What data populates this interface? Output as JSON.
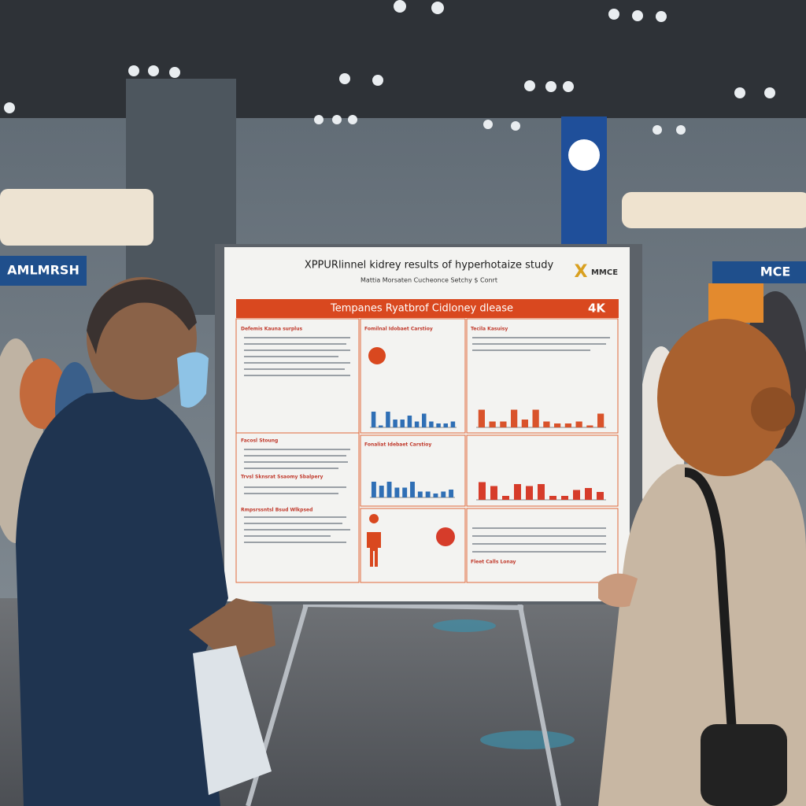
{
  "signs": {
    "left": "AMLMRSH",
    "right": "MCE"
  },
  "poster": {
    "title": "XPPURlinnel kidrey results of hyperhotaize study",
    "subtitle": "Mattia Morsaten Cucheonce Setchy $ Conrt",
    "logo_mark": "X",
    "logo": "MMCE",
    "banner": "Tempanes Ryatbrof Cidloney dlease",
    "banner_tag": "4K",
    "sections": [
      "Defemis Kauna surplus",
      "Fomilnal Idobaet Carstioy",
      "Tecila Kasuisy",
      "Fonaliat Idebaet Carstioy",
      "Facosl Stoung",
      "Trvsl Sknsrat Ssaomy Sbalpery",
      "Rmpsrssntsl Bsud Wlkpsed",
      "Fleet Calls Lonay"
    ],
    "charts": [
      {
        "color": "#2f6fb5",
        "ylim": [
          0,
          100
        ],
        "values": [
          40,
          5,
          40,
          20,
          20,
          30,
          15,
          35,
          15,
          10,
          10,
          15
        ]
      },
      {
        "color": "#d9532b",
        "ylim": [
          0,
          100
        ],
        "values": [
          45,
          15,
          15,
          45,
          20,
          45,
          15,
          10,
          10,
          15,
          5,
          35
        ]
      },
      {
        "color": "#2f6fb5",
        "ylim": [
          0,
          100
        ],
        "values": [
          40,
          30,
          40,
          25,
          25,
          40,
          15,
          15,
          10,
          15,
          20
        ]
      },
      {
        "color": "#d63c2a",
        "ylim": [
          0,
          100
        ],
        "values": [
          45,
          35,
          10,
          40,
          35,
          40,
          10,
          10,
          25,
          30,
          20
        ]
      }
    ]
  }
}
